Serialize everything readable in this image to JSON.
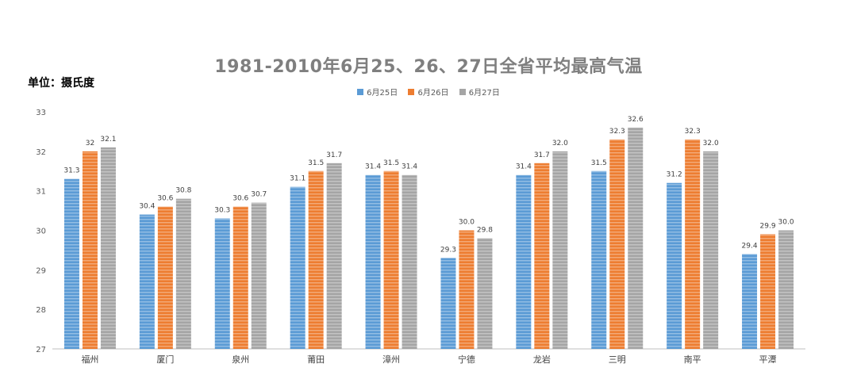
{
  "chart_data": {
    "type": "bar",
    "title": "1981-2010年6月25、26、27日全省平均最高气温",
    "unit_label": "单位：摄氏度",
    "xlabel": "",
    "ylabel": "",
    "ylim": [
      27,
      33
    ],
    "yticks": [
      "27",
      "28",
      "29",
      "30",
      "31",
      "32",
      "33"
    ],
    "legend_position": "top-center",
    "grid": false,
    "categories": [
      "福州",
      "厦门",
      "泉州",
      "莆田",
      "漳州",
      "宁德",
      "龙岩",
      "三明",
      "南平",
      "平潭"
    ],
    "series": [
      {
        "name": "6月25日",
        "color": "#5b9bd5",
        "values": [
          31.3,
          30.4,
          30.3,
          31.1,
          31.4,
          29.3,
          31.4,
          31.5,
          31.2,
          29.4
        ],
        "labels": [
          "31.3",
          "30.4",
          "30.3",
          "31.1",
          "31.4",
          "29.3",
          "31.4",
          "31.5",
          "31.2",
          "29.4"
        ]
      },
      {
        "name": "6月26日",
        "color": "#ed7d31",
        "values": [
          32,
          30.6,
          30.6,
          31.5,
          31.5,
          30.0,
          31.7,
          32.3,
          32.3,
          29.9
        ],
        "labels": [
          "32",
          "30.6",
          "30.6",
          "31.5",
          "31.5",
          "30.0",
          "31.7",
          "32.3",
          "32.3",
          "29.9"
        ]
      },
      {
        "name": "6月27日",
        "color": "#a5a5a5",
        "values": [
          32.1,
          30.8,
          30.7,
          31.7,
          31.4,
          29.8,
          32.0,
          32.6,
          32.0,
          30.0
        ],
        "labels": [
          "32.1",
          "30.8",
          "30.7",
          "31.7",
          "31.4",
          "29.8",
          "32.0",
          "32.6",
          "32.0",
          "30.0"
        ]
      }
    ]
  }
}
